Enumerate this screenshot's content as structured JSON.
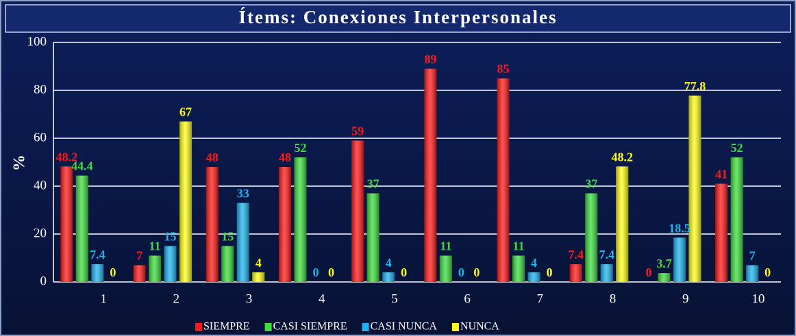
{
  "chart_data": {
    "type": "bar",
    "title": "Ítems: Conexiones Interpersonales",
    "y_label": "%",
    "categories": [
      "1",
      "2",
      "3",
      "4",
      "5",
      "6",
      "7",
      "8",
      "9",
      "10"
    ],
    "series": [
      {
        "name": "SIEMPRE",
        "color": "#ff1a1a",
        "values": [
          48.2,
          7,
          48,
          48,
          59,
          89,
          85,
          7.4,
          0,
          41
        ]
      },
      {
        "name": "CASI SIEMPRE",
        "color": "#3ddc3d",
        "values": [
          44.4,
          11,
          15,
          52,
          37,
          11,
          11,
          37,
          3.7,
          52
        ]
      },
      {
        "name": "CASI NUNCA",
        "color": "#1eb4f0",
        "values": [
          7.4,
          15,
          33,
          0,
          4,
          0,
          4,
          7.4,
          18.5,
          7
        ]
      },
      {
        "name": "NUNCA",
        "color": "#ffff1a",
        "values": [
          0,
          67,
          4,
          0,
          0,
          0,
          0,
          48.2,
          77.8,
          0
        ]
      }
    ],
    "ylim": [
      0,
      100
    ],
    "yticks": [
      0,
      20,
      40,
      60,
      80,
      100
    ],
    "grid": true,
    "legend": "bottom"
  }
}
